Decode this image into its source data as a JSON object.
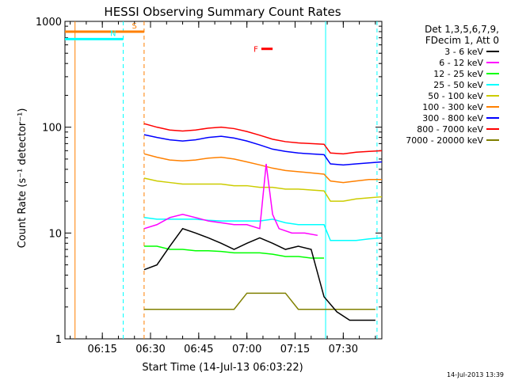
{
  "chart_data": {
    "type": "line",
    "title": "HESSI Observing Summary Count Rates",
    "xlabel": "Start Time (14-Jul-13 06:03:22)",
    "ylabel": "Count Rate (s⁻¹ detector⁻¹)",
    "yscale": "log",
    "ylim": [
      1,
      1000
    ],
    "xlim": [
      "06:03:22",
      "07:42:00"
    ],
    "x_ticks": [
      "06:15",
      "06:30",
      "06:45",
      "07:00",
      "07:15",
      "07:30"
    ],
    "y_ticks": [
      "1",
      "10",
      "100",
      "1000"
    ],
    "legend_header": [
      "Det 1,3,5,6,7,9,",
      "FDecim 1, Att 0"
    ],
    "series": [
      {
        "name": "3 - 6 keV",
        "color": "#000000",
        "x": [
          "06:28",
          "06:32",
          "06:36",
          "06:40",
          "06:44",
          "06:48",
          "06:52",
          "06:56",
          "07:00",
          "07:04",
          "07:08",
          "07:12",
          "07:16",
          "07:20",
          "07:24",
          "07:28",
          "07:32",
          "07:36",
          "07:40"
        ],
        "y": [
          4.5,
          5.0,
          7.5,
          11,
          10,
          9,
          8,
          7,
          8,
          9,
          8,
          7,
          7.5,
          7,
          2.5,
          1.8,
          1.5,
          1.5,
          1.5
        ]
      },
      {
        "name": "6 - 12 keV",
        "color": "#ff00ff",
        "x": [
          "06:28",
          "06:32",
          "06:36",
          "06:40",
          "06:44",
          "06:48",
          "06:52",
          "06:56",
          "07:00",
          "07:04",
          "07:06",
          "07:08",
          "07:10",
          "07:14",
          "07:18",
          "07:22"
        ],
        "y": [
          11,
          12,
          14,
          15,
          14,
          13,
          12.5,
          12,
          12,
          11,
          45,
          15,
          11,
          10,
          10,
          9.5
        ]
      },
      {
        "name": "12 - 25 keV",
        "color": "#00ff00",
        "x": [
          "06:28",
          "06:32",
          "06:36",
          "06:40",
          "06:44",
          "06:48",
          "06:52",
          "06:56",
          "07:00",
          "07:04",
          "07:08",
          "07:12",
          "07:16",
          "07:20",
          "07:24"
        ],
        "y": [
          7.5,
          7.5,
          7.0,
          7.0,
          6.8,
          6.8,
          6.7,
          6.5,
          6.5,
          6.5,
          6.3,
          6.0,
          6.0,
          5.8,
          5.8
        ]
      },
      {
        "name": "25 - 50 keV",
        "color": "#00ffff",
        "x": [
          "06:28",
          "06:32",
          "06:36",
          "06:40",
          "06:44",
          "06:48",
          "06:52",
          "06:56",
          "07:00",
          "07:04",
          "07:08",
          "07:12",
          "07:16",
          "07:20",
          "07:24",
          "07:26",
          "07:30",
          "07:34",
          "07:38",
          "07:42"
        ],
        "y": [
          14,
          13.5,
          13.5,
          13.5,
          13.5,
          13.2,
          13,
          13,
          13,
          13,
          13.5,
          12.5,
          12,
          12,
          12,
          8.5,
          8.5,
          8.5,
          8.8,
          9
        ]
      },
      {
        "name": "50 - 100 keV",
        "color": "#cccc00",
        "x": [
          "06:28",
          "06:32",
          "06:36",
          "06:40",
          "06:44",
          "06:48",
          "06:52",
          "06:56",
          "07:00",
          "07:04",
          "07:08",
          "07:12",
          "07:16",
          "07:20",
          "07:24",
          "07:26",
          "07:30",
          "07:34",
          "07:38",
          "07:42"
        ],
        "y": [
          33,
          31,
          30,
          29,
          29,
          29,
          29,
          28,
          28,
          27,
          27,
          26,
          26,
          25.5,
          25,
          20,
          20,
          21,
          21.5,
          22
        ]
      },
      {
        "name": "100 - 300 keV",
        "color": "#ff8000",
        "x": [
          "06:28",
          "06:32",
          "06:36",
          "06:40",
          "06:44",
          "06:48",
          "06:52",
          "06:56",
          "07:00",
          "07:04",
          "07:08",
          "07:12",
          "07:16",
          "07:20",
          "07:24",
          "07:26",
          "07:30",
          "07:34",
          "07:38",
          "07:42"
        ],
        "y": [
          56,
          52,
          49,
          48,
          49,
          51,
          52,
          50,
          47,
          44,
          41,
          39,
          38,
          37,
          36,
          31,
          30,
          31,
          32,
          32
        ]
      },
      {
        "name": "300 - 800 keV",
        "color": "#0000ff",
        "x": [
          "06:28",
          "06:32",
          "06:36",
          "06:40",
          "06:44",
          "06:48",
          "06:52",
          "06:56",
          "07:00",
          "07:04",
          "07:08",
          "07:12",
          "07:16",
          "07:20",
          "07:24",
          "07:26",
          "07:30",
          "07:34",
          "07:38",
          "07:42"
        ],
        "y": [
          85,
          80,
          76,
          74,
          76,
          80,
          82,
          79,
          74,
          68,
          62,
          59,
          57,
          56,
          55,
          45,
          44,
          45,
          46,
          47
        ]
      },
      {
        "name": "800 - 7000 keV",
        "color": "#ff0000",
        "x": [
          "06:28",
          "06:32",
          "06:36",
          "06:40",
          "06:44",
          "06:48",
          "06:52",
          "06:56",
          "07:00",
          "07:04",
          "07:08",
          "07:12",
          "07:16",
          "07:20",
          "07:24",
          "07:26",
          "07:30",
          "07:34",
          "07:38",
          "07:42"
        ],
        "y": [
          108,
          100,
          94,
          92,
          94,
          98,
          100,
          97,
          91,
          84,
          77,
          73,
          71,
          70,
          69,
          57,
          56,
          58,
          59,
          60
        ]
      },
      {
        "name": "7000 - 20000 keV",
        "color": "#808000",
        "x": [
          "06:28",
          "06:32",
          "06:36",
          "06:40",
          "06:44",
          "06:48",
          "06:52",
          "06:56",
          "07:00",
          "07:04",
          "07:08",
          "07:12",
          "07:16",
          "07:20",
          "07:24",
          "07:28",
          "07:32",
          "07:36",
          "07:40"
        ],
        "y": [
          1.9,
          1.9,
          1.9,
          1.9,
          1.9,
          1.9,
          1.9,
          1.9,
          2.7,
          2.7,
          2.7,
          2.7,
          1.9,
          1.9,
          1.9,
          1.9,
          1.9,
          1.9,
          1.9
        ]
      }
    ],
    "flags": [
      {
        "label": "S",
        "color": "#ff8000",
        "x_start": "06:03:22",
        "x_end": "06:28:00",
        "y": 800
      },
      {
        "label": "N",
        "color": "#00ffff",
        "x_start": "06:03:22",
        "x_end": "06:21:30",
        "y": 680
      },
      {
        "label": "F",
        "color": "#ff0000",
        "x_start": "07:04:30",
        "x_end": "07:08:00",
        "y": 550
      }
    ],
    "vertical_markers": [
      {
        "color": "#ff8000",
        "x": "06:06:30",
        "style": "solid"
      },
      {
        "color": "#ff8000",
        "x": "06:28:00",
        "style": "dashed"
      },
      {
        "color": "#00ffff",
        "x": "06:21:30",
        "style": "dashed"
      },
      {
        "color": "#00ffff",
        "x": "07:24:30",
        "style": "solid"
      },
      {
        "color": "#00ffff",
        "x": "07:40:30",
        "style": "dashed"
      }
    ]
  },
  "footer": {
    "timestamp": "14-Jul-2013 13:39"
  }
}
